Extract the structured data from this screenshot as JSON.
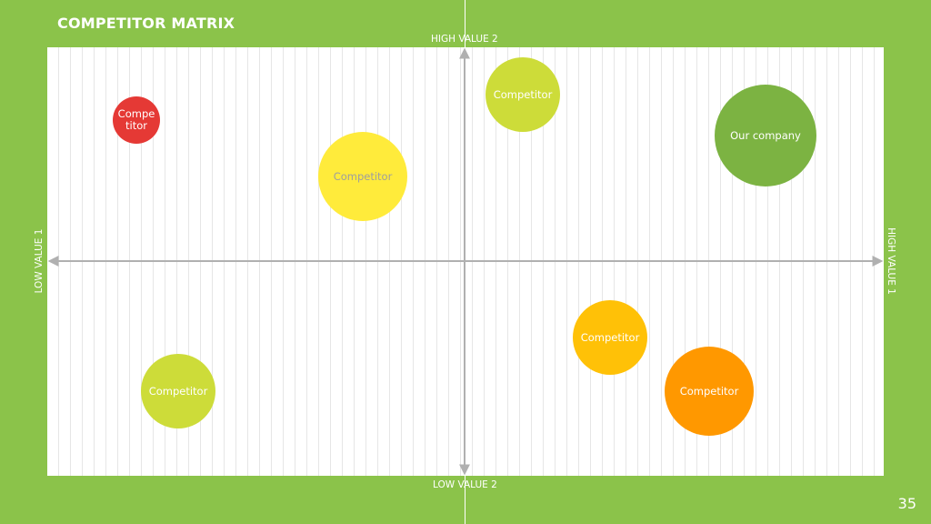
{
  "title": "COMPETITOR MATRIX",
  "axes": {
    "top": "HIGH VALUE 2",
    "bottom": "LOW VALUE 2",
    "left": "LOW VALUE 1",
    "right": "HIGH VALUE 1"
  },
  "bubbles": [
    {
      "label": "Competitor",
      "color": "#e53935",
      "text_color": "#ffffff"
    },
    {
      "label": "Competitor",
      "color": "#ffeb3b",
      "text_color": "#9e9e9e"
    },
    {
      "label": "Competitor",
      "color": "#cddc39",
      "text_color": "#ffffff"
    },
    {
      "label": "Our company",
      "color": "#7cb342",
      "text_color": "#ffffff"
    },
    {
      "label": "Competitor",
      "color": "#cddc39",
      "text_color": "#ffffff"
    },
    {
      "label": "Competitor",
      "color": "#ffc107",
      "text_color": "#ffffff"
    },
    {
      "label": "Competitor",
      "color": "#ff9800",
      "text_color": "#ffffff"
    }
  ],
  "page_number": "35",
  "colors": {
    "background": "#8bc34a",
    "axis": "#b0b0b0"
  }
}
